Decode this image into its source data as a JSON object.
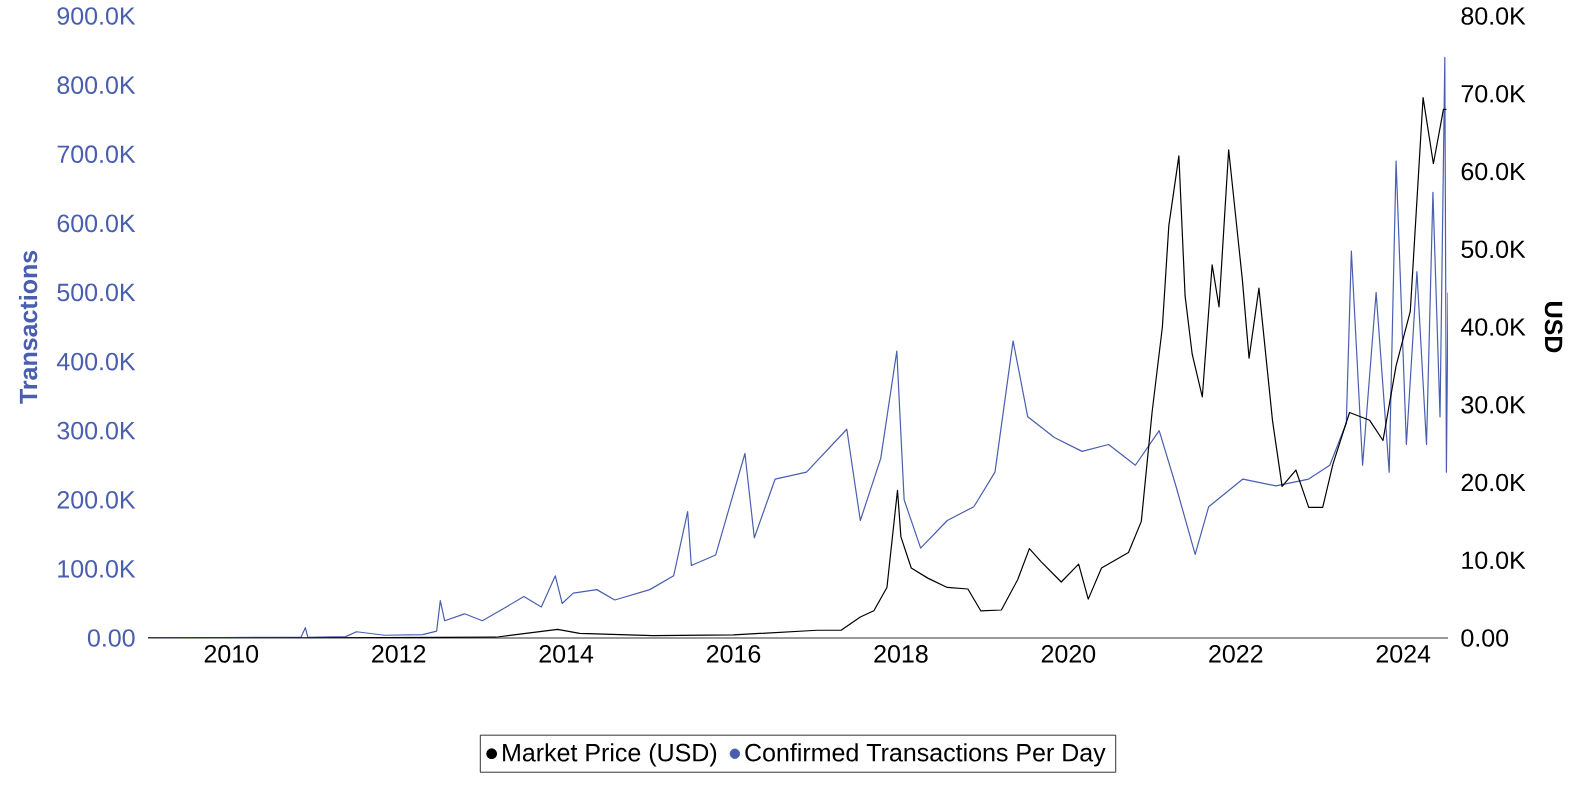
{
  "chart_data": {
    "type": "line",
    "ylabel": "Transactions",
    "y2label": "USD",
    "legend": "bottom",
    "xlim": [
      "2009-01-03",
      "2024-07-15"
    ],
    "xticks": [
      "2010",
      "2012",
      "2014",
      "2016",
      "2018",
      "2020",
      "2022",
      "2024"
    ],
    "ylim": [
      0,
      900000
    ],
    "yticks": [
      {
        "value": 0,
        "label": "0.00"
      },
      {
        "value": 100000,
        "label": "100.0K"
      },
      {
        "value": 200000,
        "label": "200.0K"
      },
      {
        "value": 300000,
        "label": "300.0K"
      },
      {
        "value": 400000,
        "label": "400.0K"
      },
      {
        "value": 500000,
        "label": "500.0K"
      },
      {
        "value": 600000,
        "label": "600.0K"
      },
      {
        "value": 700000,
        "label": "700.0K"
      },
      {
        "value": 800000,
        "label": "800.0K"
      },
      {
        "value": 900000,
        "label": "900.0K"
      }
    ],
    "y2lim": [
      0,
      80000
    ],
    "y2ticks": [
      {
        "value": 0,
        "label": "0.00"
      },
      {
        "value": 10000,
        "label": "10.0K"
      },
      {
        "value": 20000,
        "label": "20.0K"
      },
      {
        "value": 30000,
        "label": "30.0K"
      },
      {
        "value": 40000,
        "label": "40.0K"
      },
      {
        "value": 50000,
        "label": "50.0K"
      },
      {
        "value": 60000,
        "label": "60.0K"
      },
      {
        "value": 70000,
        "label": "70.0K"
      },
      {
        "value": 80000,
        "label": "80.0K"
      }
    ],
    "series": [
      {
        "name": "Market Price (USD)",
        "color": "#000000",
        "axis": "y2",
        "x": [
          "2009-01-03",
          "2010-07-01",
          "2013-03-01",
          "2013-11-25",
          "2014-03-01",
          "2015-01-15",
          "2016-01-01",
          "2017-01-01",
          "2017-04-15",
          "2017-07-08",
          "2017-09-05",
          "2017-11-01",
          "2017-12-17",
          "2018-01-01",
          "2018-02-15",
          "2018-04-28",
          "2018-07-22",
          "2018-10-20",
          "2018-12-15",
          "2019-03-15",
          "2019-05-25",
          "2019-07-15",
          "2019-09-05",
          "2019-12-01",
          "2020-02-15",
          "2020-03-28",
          "2020-05-25",
          "2020-09-20",
          "2020-11-15",
          "2021-01-01",
          "2021-02-15",
          "2021-03-15",
          "2021-04-28",
          "2021-05-25",
          "2021-06-25",
          "2021-08-08",
          "2021-09-20",
          "2021-10-20",
          "2021-12-01",
          "2022-01-30",
          "2022-02-28",
          "2022-04-12",
          "2022-06-10",
          "2022-07-22",
          "2022-09-20",
          "2022-11-15",
          "2023-01-15",
          "2023-03-01",
          "2023-05-12",
          "2023-08-08",
          "2023-10-05",
          "2023-12-01",
          "2024-02-01",
          "2024-03-28",
          "2024-05-12",
          "2024-06-25",
          "2024-07-08"
        ],
        "values": [
          0,
          0,
          100,
          1100,
          600,
          300,
          400,
          1000,
          1000,
          2700,
          3500,
          6500,
          19000,
          13000,
          9000,
          7700,
          6500,
          6300,
          3500,
          3600,
          7500,
          11500,
          9800,
          7200,
          9500,
          5000,
          9000,
          11000,
          15000,
          29000,
          40000,
          53000,
          62000,
          44000,
          36500,
          31000,
          48000,
          42600,
          62800,
          46000,
          36000,
          45000,
          28000,
          19500,
          21600,
          16800,
          16800,
          22400,
          29000,
          28000,
          25400,
          35000,
          42000,
          69500,
          61000,
          68000,
          68000
        ]
      },
      {
        "name": "Confirmed Transactions Per Day",
        "color": "#4a5eb0",
        "axis": "y",
        "x": [
          "2009-01-03",
          "2010-07-01",
          "2010-11-01",
          "2010-11-20",
          "2010-12-01",
          "2011-05-15",
          "2011-07-01",
          "2011-11-01",
          "2012-04-15",
          "2012-06-15",
          "2012-07-01",
          "2012-07-20",
          "2012-10-15",
          "2013-01-01",
          "2013-04-15",
          "2013-07-01",
          "2013-09-15",
          "2013-11-15",
          "2013-12-15",
          "2014-02-01",
          "2014-05-15",
          "2014-08-01",
          "2015-01-01",
          "2015-04-15",
          "2015-06-15",
          "2015-07-01",
          "2015-10-15",
          "2016-02-20",
          "2016-04-01",
          "2016-07-01",
          "2016-11-15",
          "2017-05-10",
          "2017-07-08",
          "2017-10-05",
          "2017-12-14",
          "2018-01-15",
          "2018-03-28",
          "2018-07-22",
          "2018-11-15",
          "2019-02-15",
          "2019-05-05",
          "2019-07-08",
          "2019-11-01",
          "2020-03-01",
          "2020-06-25",
          "2020-10-20",
          "2021-02-01",
          "2021-04-15",
          "2021-07-08",
          "2021-09-05",
          "2022-02-01",
          "2022-06-25",
          "2022-11-15",
          "2023-02-15",
          "2023-04-28",
          "2023-05-20",
          "2023-07-08",
          "2023-09-05",
          "2023-11-01",
          "2023-12-01",
          "2024-01-15",
          "2024-03-01",
          "2024-04-12",
          "2024-05-10",
          "2024-06-10",
          "2024-07-01",
          "2024-07-08",
          "2024-07-15"
        ],
        "values": [
          0,
          1000,
          1000,
          15000,
          1000,
          2000,
          9000,
          4000,
          5000,
          10000,
          54000,
          25000,
          35000,
          25000,
          45000,
          60000,
          45000,
          90000,
          50000,
          65000,
          70000,
          55000,
          70000,
          90000,
          183000,
          105000,
          120000,
          267000,
          145000,
          230000,
          240000,
          302000,
          170000,
          260000,
          415000,
          200000,
          130000,
          170000,
          190000,
          240000,
          430000,
          320000,
          290000,
          270000,
          280000,
          250000,
          300000,
          220000,
          121000,
          190000,
          230000,
          220000,
          230000,
          250000,
          311000,
          560000,
          250000,
          500000,
          240000,
          690000,
          280000,
          530000,
          280000,
          645000,
          320000,
          840000,
          240000,
          500000
        ]
      }
    ]
  }
}
